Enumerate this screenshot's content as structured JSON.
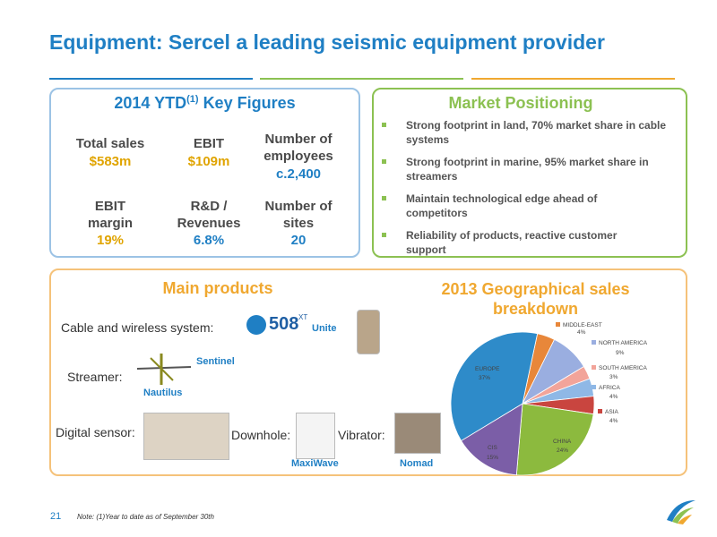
{
  "title": "Equipment: Sercel a leading seismic equipment provider",
  "key_figures": {
    "title_prefix": "2014 YTD",
    "title_sup": "(1)",
    "title_suffix": "Key Figures",
    "items": [
      {
        "label": "Total sales",
        "value": "$583m"
      },
      {
        "label": "EBIT",
        "value": "$109m"
      },
      {
        "label": "Number of employees",
        "value": "c.2,400"
      },
      {
        "label": "EBIT margin",
        "value": "19%"
      },
      {
        "label": "R&D / Revenues",
        "value": "6.8%"
      },
      {
        "label": "Number of sites",
        "value": "20"
      }
    ]
  },
  "market": {
    "title": "Market Positioning",
    "bullets": [
      "Strong footprint in land, 70% market share in cable systems",
      "Strong footprint in marine, 95% market share in streamers",
      "Maintain technological edge ahead of competitors",
      "Reliability of products, reactive customer support"
    ]
  },
  "products": {
    "title": "Main products",
    "cable_label": "Cable and wireless system:",
    "logo_main": "508",
    "logo_sup": "XT",
    "unite": "Unite",
    "streamer_label": "Streamer:",
    "sentinel": "Sentinel",
    "nautilus": "Nautilus",
    "sensor_label": "Digital sensor:",
    "downhole_label": "Downhole:",
    "maxiwave": "MaxiWave",
    "vibrator_label": "Vibrator:",
    "nomad": "Nomad"
  },
  "chart": {
    "type": "pie",
    "title": "2013 Geographical sales breakdown",
    "categories": [
      "MIDDLE-EAST",
      "NORTH AMERICA",
      "SOUTH AMERICA",
      "AFRICA",
      "ASIA",
      "CHINA",
      "CIS",
      "EUROPE"
    ],
    "values": [
      4,
      9,
      3,
      4,
      4,
      24,
      15,
      37
    ],
    "value_labels": [
      "4%",
      "9%",
      "3%",
      "4%",
      "4%",
      "24%",
      "15%",
      "37%"
    ],
    "colors": [
      "#e8873a",
      "#9aaee0",
      "#f2a49a",
      "#8fb8e6",
      "#c9453f",
      "#8cba3e",
      "#7b5ea7",
      "#2e8bc9"
    ]
  },
  "footer": {
    "page": "21",
    "note": "Note: (1)Year to date as of September 30th"
  }
}
